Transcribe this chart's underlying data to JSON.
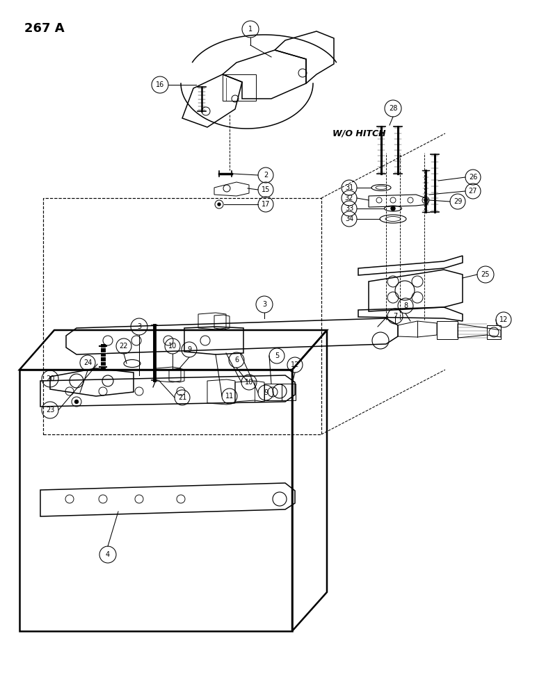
{
  "title": "267 A",
  "wo_hitch_label": "W/O HITCH",
  "background_color": "#ffffff",
  "line_color": "#000000"
}
